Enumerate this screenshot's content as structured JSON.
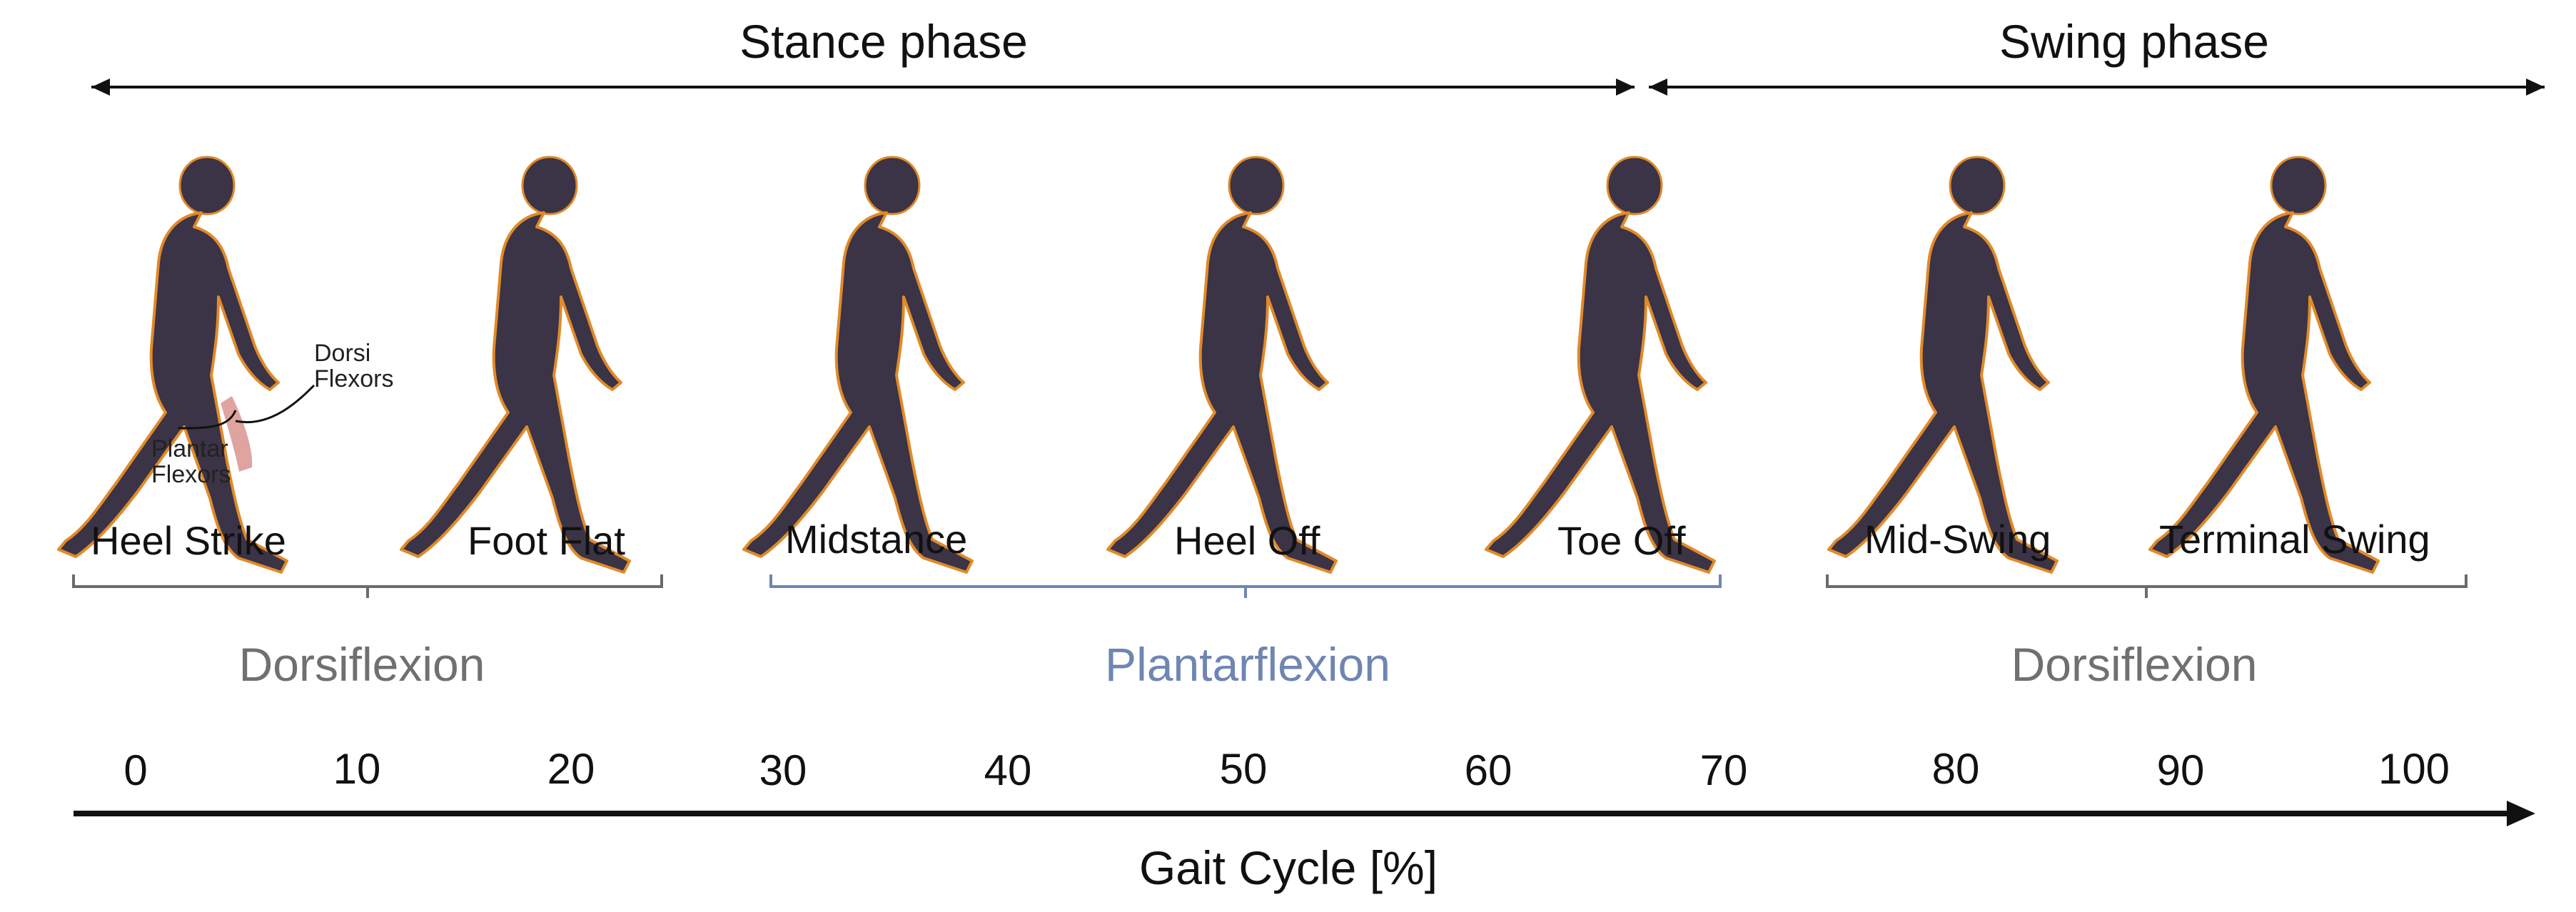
{
  "phases": {
    "stance": "Stance phase",
    "swing": "Swing phase"
  },
  "events": {
    "heel_strike": "Heel Strike",
    "foot_flat": "Foot Flat",
    "midstance": "Midstance",
    "heel_off": "Heel Off",
    "toe_off": "Toe Off",
    "mid_swing": "Mid-Swing",
    "terminal_swing": "Terminal Swing"
  },
  "motions": {
    "dorsiflexion_1": "Dorsiflexion",
    "plantarflexion": "Plantarflexion",
    "dorsiflexion_2": "Dorsiflexion"
  },
  "annotations": {
    "dorsi_line1": "Dorsi",
    "dorsi_line2": "Flexors",
    "plantar_line1": "Plantar",
    "plantar_line2": "Flexors"
  },
  "axis": {
    "ticks": [
      "0",
      "10",
      "20",
      "30",
      "40",
      "50",
      "60",
      "70",
      "80",
      "90",
      "100"
    ],
    "label": "Gait Cycle [%]"
  },
  "colors": {
    "text": "#111111",
    "dorsiflexion": "#707070",
    "plantarflexion": "#6f86b2",
    "bracket_gray": "#6b6b6b",
    "bracket_blue": "#6f86b2",
    "figure_body": "#3b3346",
    "figure_outline": "#e08a2a",
    "muscle_highlight": "#d9948f"
  }
}
